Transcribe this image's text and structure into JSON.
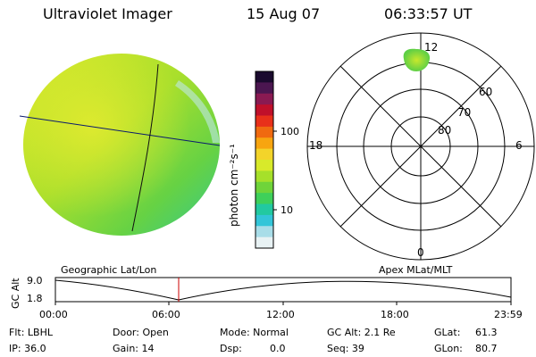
{
  "header": {
    "instrument": "Ultraviolet Imager",
    "date": "15 Aug 07",
    "time": "06:33:57 UT"
  },
  "colorbar": {
    "unit_label": "photon cm⁻²s⁻¹",
    "scale": "log",
    "tick_labels": [
      "100",
      "10"
    ],
    "colors": [
      "#1a0a2e",
      "#4b1650",
      "#8a1a52",
      "#c0102a",
      "#e8301a",
      "#f06a10",
      "#f7a510",
      "#f3d42a",
      "#d8ea2a",
      "#a6e02a",
      "#6fd43a",
      "#3ed05a",
      "#22c9a0",
      "#33c5d8",
      "#a8dde8",
      "#e8f2f4"
    ]
  },
  "polar_plot": {
    "mlt_labels": {
      "top": "12",
      "left": "18",
      "right": "6",
      "bottom": "0"
    },
    "lat_labels": [
      "60",
      "70",
      "80"
    ]
  },
  "timeline": {
    "left_title": "Geographic Lat/Lon",
    "right_title": "Apex MLat/MLT",
    "ylabel": "GC Alt",
    "yticks": [
      "9.0",
      "1.8"
    ],
    "xticks": [
      "00:00",
      "06:00",
      "12:00",
      "18:00",
      "23:59"
    ],
    "current_time_color": "#cc0000"
  },
  "status": {
    "flt": "Flt: LBHL",
    "ip": "IP: 36.0",
    "door": "Door: Open",
    "gain": "Gain: 14",
    "mode": "Mode: Normal",
    "dsp": "Dsp:",
    "dsp_value": "0.0",
    "gc_alt": "GC Alt: 2.1 Re",
    "seq": "Seq: 39",
    "glat_label": "GLat:",
    "glat_value": "61.3",
    "glon_label": "GLon:",
    "glon_value": "80.7"
  }
}
